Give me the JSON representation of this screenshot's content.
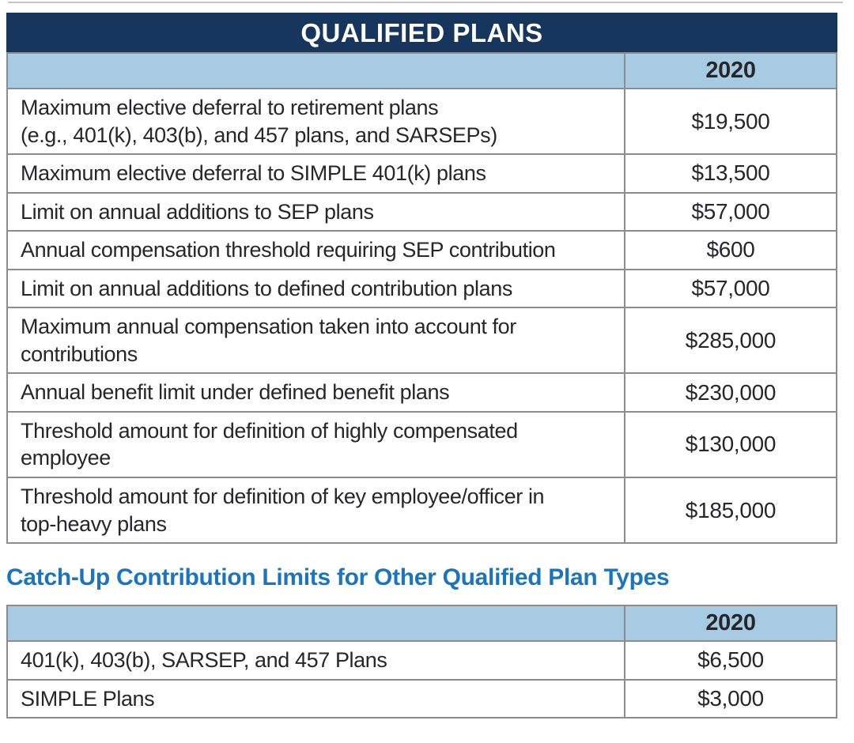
{
  "colors": {
    "title_bar_navy": "#17365d",
    "header_light_blue": "#a6cbe2",
    "heading_blue": "#1b75bc",
    "body_text": "#26262b",
    "table_border_gray": "#8d8d8d"
  },
  "table1": {
    "title": "QUALIFIED PLANS",
    "year_header": "2020",
    "rows": [
      {
        "label": "Maximum elective deferral to retirement plans\n(e.g., 401(k), 403(b), and 457 plans, and SARSEPs)",
        "value": "$19,500"
      },
      {
        "label": "Maximum elective deferral to SIMPLE 401(k) plans",
        "value": "$13,500"
      },
      {
        "label": "Limit on annual additions to SEP plans",
        "value": "$57,000"
      },
      {
        "label": "Annual compensation threshold requiring SEP contribution",
        "value": "$600"
      },
      {
        "label": "Limit on annual additions to defined contribution plans",
        "value": "$57,000"
      },
      {
        "label": "Maximum annual compensation taken into account for\ncontributions",
        "value": "$285,000"
      },
      {
        "label": "Annual benefit limit under defined benefit plans",
        "value": "$230,000"
      },
      {
        "label": "Threshold amount for definition of highly compensated\nemployee",
        "value": "$130,000"
      },
      {
        "label": "Threshold amount for definition of key employee/officer in\ntop-heavy plans",
        "value": "$185,000"
      }
    ]
  },
  "section2": {
    "heading": "Catch-Up Contribution Limits for Other Qualified Plan Types",
    "year_header": "2020",
    "rows": [
      {
        "label": "401(k), 403(b), SARSEP, and 457 Plans",
        "value": "$6,500"
      },
      {
        "label": "SIMPLE Plans",
        "value": "$3,000"
      }
    ]
  }
}
